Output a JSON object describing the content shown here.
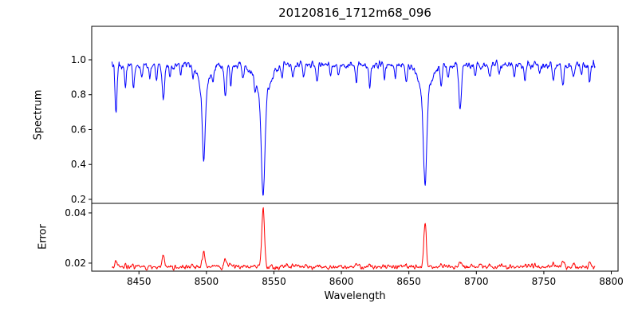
{
  "chart_data": {
    "type": "line",
    "title": "20120816_1712m68_096",
    "xlabel": "Wavelength",
    "xlim": [
      8415,
      8805
    ],
    "x_ticks": [
      8450,
      8500,
      8550,
      8600,
      8650,
      8700,
      8750,
      8800
    ],
    "x_min": 8430,
    "x_max": 8788,
    "n_points": 1150,
    "grid": false,
    "legend": false,
    "panels": [
      {
        "name": "spectrum",
        "ylabel": "Spectrum",
        "ylim": [
          0.177,
          1.192
        ],
        "y_ticks": [
          0.2,
          0.4,
          0.6,
          0.8,
          1.0
        ],
        "tick_decimals": 1,
        "series": {
          "name": "flux",
          "color": "#0000ff",
          "continuum": 0.97,
          "noise_sigma": 0.012,
          "absorption_lines": [
            {
              "c": 8433,
              "d": 0.28,
              "w": 0.7
            },
            {
              "c": 8440,
              "d": 0.12,
              "w": 0.7
            },
            {
              "c": 8446,
              "d": 0.12,
              "w": 0.7
            },
            {
              "c": 8452,
              "d": 0.08,
              "w": 0.6
            },
            {
              "c": 8458,
              "d": 0.07,
              "w": 0.6
            },
            {
              "c": 8463,
              "d": 0.09,
              "w": 0.6
            },
            {
              "c": 8468,
              "d": 0.21,
              "w": 0.8
            },
            {
              "c": 8473,
              "d": 0.07,
              "w": 0.6
            },
            {
              "c": 8481,
              "d": 0.06,
              "w": 0.6
            },
            {
              "c": 8490,
              "d": 0.07,
              "w": 0.6
            },
            {
              "c": 8498,
              "d": 0.42,
              "w": 1.1
            },
            {
              "c": 8498,
              "d": 0.13,
              "w": 4.0
            },
            {
              "c": 8505,
              "d": 0.07,
              "w": 0.6
            },
            {
              "c": 8514,
              "d": 0.18,
              "w": 0.8
            },
            {
              "c": 8518,
              "d": 0.12,
              "w": 0.7
            },
            {
              "c": 8527,
              "d": 0.08,
              "w": 0.6
            },
            {
              "c": 8536,
              "d": 0.06,
              "w": 0.6
            },
            {
              "c": 8542,
              "d": 0.57,
              "w": 1.3
            },
            {
              "c": 8542,
              "d": 0.18,
              "w": 5.0
            },
            {
              "c": 8556,
              "d": 0.07,
              "w": 0.6
            },
            {
              "c": 8564,
              "d": 0.06,
              "w": 0.6
            },
            {
              "c": 8572,
              "d": 0.06,
              "w": 0.6
            },
            {
              "c": 8582,
              "d": 0.09,
              "w": 0.7
            },
            {
              "c": 8592,
              "d": 0.06,
              "w": 0.6
            },
            {
              "c": 8598,
              "d": 0.07,
              "w": 0.6
            },
            {
              "c": 8611,
              "d": 0.1,
              "w": 0.7
            },
            {
              "c": 8621,
              "d": 0.11,
              "w": 0.7
            },
            {
              "c": 8632,
              "d": 0.06,
              "w": 0.6
            },
            {
              "c": 8640,
              "d": 0.07,
              "w": 0.6
            },
            {
              "c": 8648,
              "d": 0.09,
              "w": 0.7
            },
            {
              "c": 8662,
              "d": 0.52,
              "w": 1.2
            },
            {
              "c": 8662,
              "d": 0.16,
              "w": 4.5
            },
            {
              "c": 8674,
              "d": 0.11,
              "w": 0.7
            },
            {
              "c": 8679,
              "d": 0.08,
              "w": 0.6
            },
            {
              "c": 8688,
              "d": 0.26,
              "w": 0.9
            },
            {
              "c": 8699,
              "d": 0.07,
              "w": 0.6
            },
            {
              "c": 8710,
              "d": 0.08,
              "w": 0.7
            },
            {
              "c": 8717,
              "d": 0.06,
              "w": 0.6
            },
            {
              "c": 8728,
              "d": 0.07,
              "w": 0.6
            },
            {
              "c": 8736,
              "d": 0.09,
              "w": 0.7
            },
            {
              "c": 8747,
              "d": 0.06,
              "w": 0.6
            },
            {
              "c": 8757,
              "d": 0.09,
              "w": 0.7
            },
            {
              "c": 8764,
              "d": 0.11,
              "w": 0.7
            },
            {
              "c": 8772,
              "d": 0.07,
              "w": 0.6
            },
            {
              "c": 8778,
              "d": 0.06,
              "w": 0.6
            },
            {
              "c": 8784,
              "d": 0.09,
              "w": 0.7
            }
          ]
        }
      },
      {
        "name": "error",
        "ylabel": "Error",
        "ylim": [
          0.0168,
          0.0438
        ],
        "y_ticks": [
          0.02,
          0.04
        ],
        "tick_decimals": 2,
        "series": {
          "name": "error",
          "color": "#ff0000",
          "baseline": 0.0185,
          "noise_sigma": 0.0005,
          "peaks": [
            {
              "c": 8433,
              "h": 0.0022,
              "w": 0.8
            },
            {
              "c": 8440,
              "h": 0.001,
              "w": 0.7
            },
            {
              "c": 8468,
              "h": 0.005,
              "w": 0.8
            },
            {
              "c": 8490,
              "h": 0.0008,
              "w": 0.6
            },
            {
              "c": 8498,
              "h": 0.006,
              "w": 0.9
            },
            {
              "c": 8514,
              "h": 0.0028,
              "w": 0.8
            },
            {
              "c": 8518,
              "h": 0.0014,
              "w": 0.7
            },
            {
              "c": 8542,
              "h": 0.0235,
              "w": 1.0
            },
            {
              "c": 8556,
              "h": 0.0008,
              "w": 0.7
            },
            {
              "c": 8582,
              "h": 0.001,
              "w": 0.7
            },
            {
              "c": 8611,
              "h": 0.0009,
              "w": 0.7
            },
            {
              "c": 8621,
              "h": 0.0011,
              "w": 0.7
            },
            {
              "c": 8648,
              "h": 0.0009,
              "w": 0.7
            },
            {
              "c": 8662,
              "h": 0.018,
              "w": 0.9
            },
            {
              "c": 8674,
              "h": 0.0011,
              "w": 0.7
            },
            {
              "c": 8688,
              "h": 0.0018,
              "w": 0.8
            },
            {
              "c": 8710,
              "h": 0.0008,
              "w": 0.7
            },
            {
              "c": 8736,
              "h": 0.001,
              "w": 0.7
            },
            {
              "c": 8757,
              "h": 0.0011,
              "w": 0.7
            },
            {
              "c": 8764,
              "h": 0.0022,
              "w": 0.8
            },
            {
              "c": 8772,
              "h": 0.0012,
              "w": 0.7
            },
            {
              "c": 8784,
              "h": 0.002,
              "w": 0.8
            }
          ]
        }
      }
    ]
  }
}
